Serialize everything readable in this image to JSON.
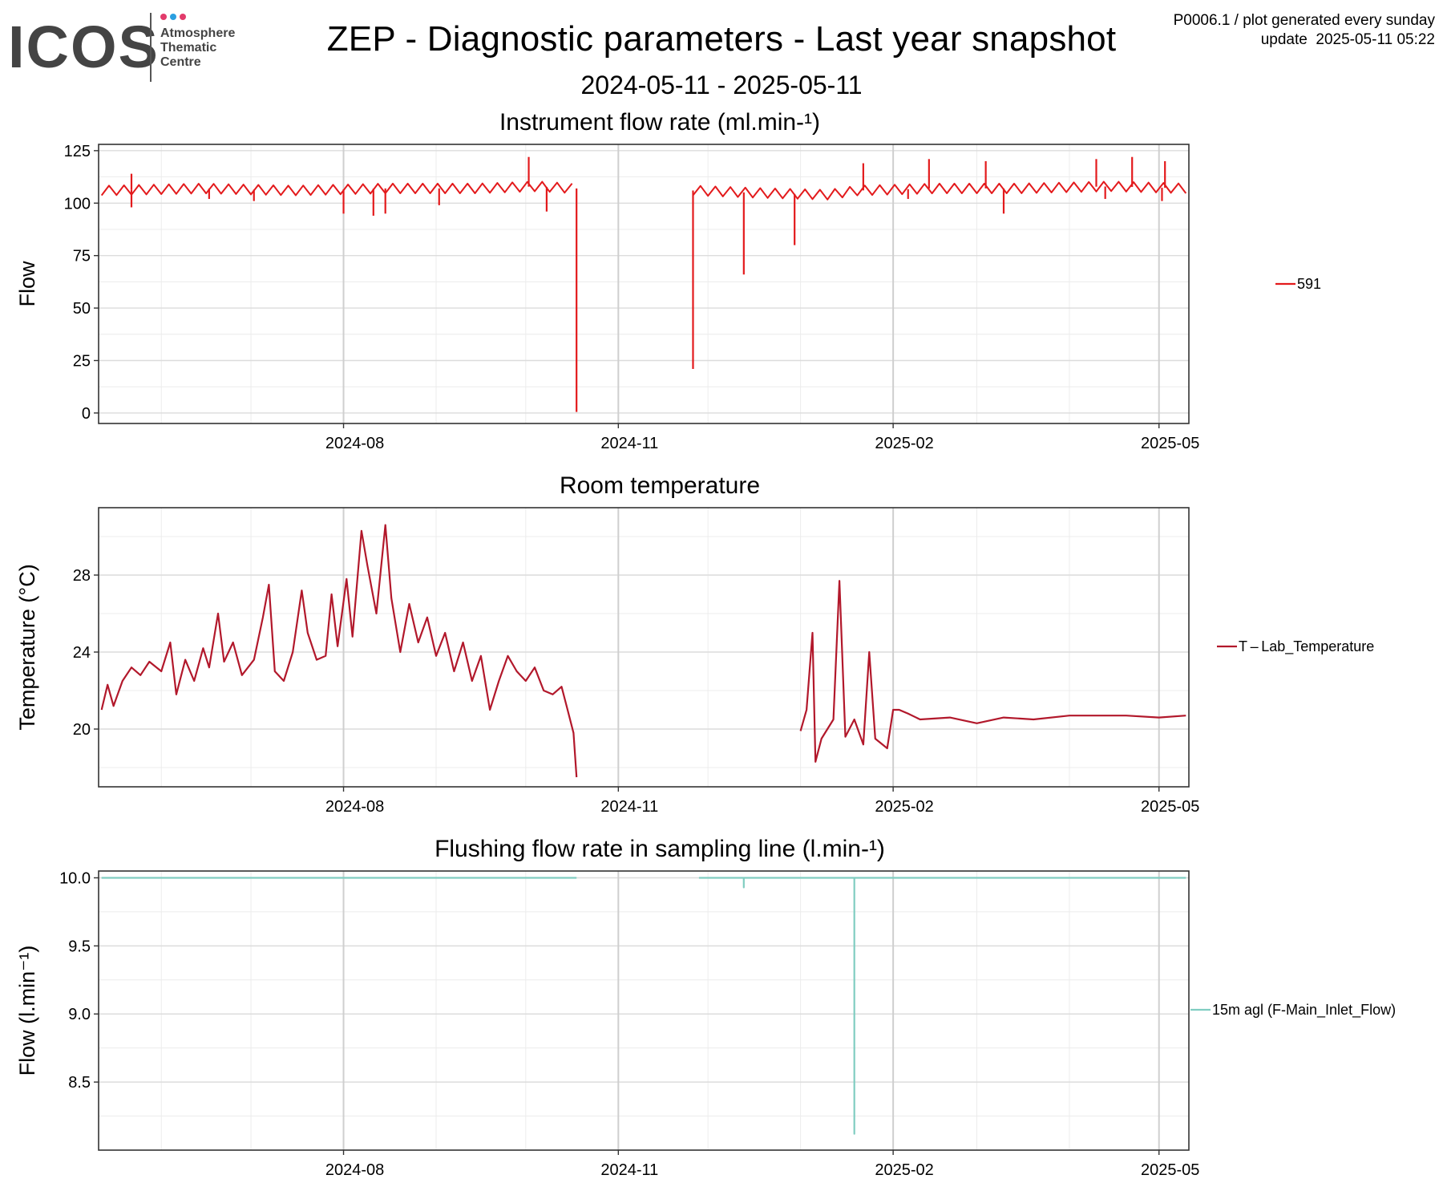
{
  "logo": {
    "wordmark": "ICOS",
    "line1": "Atmosphere",
    "line2": "Thematic",
    "line3": "Centre",
    "dot_colors": [
      "#e23b6b",
      "#2a9fe0",
      "#e23b6b"
    ]
  },
  "header": {
    "title": "ZEP - Diagnostic parameters - Last year snapshot",
    "subtitle": "2024-05-11 - 2025-05-11",
    "meta_line1": "P0006.1 / plot generated every sunday",
    "meta_line2": "update  2025-05-11 05:22"
  },
  "chart_data": [
    {
      "type": "line",
      "title": "Instrument flow rate (ml.min-¹)",
      "ylabel": "Flow",
      "xlabel": "",
      "xlim": [
        "2024-05-11",
        "2025-05-11"
      ],
      "ylim": [
        -5,
        128
      ],
      "yticks": [
        0,
        25,
        50,
        75,
        100,
        125
      ],
      "xticks": [
        "2024-08",
        "2024-11",
        "2025-02",
        "2025-05"
      ],
      "grid": true,
      "legend": "right",
      "color": "#e31a1c",
      "series": [
        {
          "name": "591",
          "baseline_points": [
            [
              "2024-05-12",
              106
            ],
            [
              "2024-06-15",
              107
            ],
            [
              "2024-07-15",
              106
            ],
            [
              "2024-08-15",
              107
            ],
            [
              "2024-09-15",
              107
            ],
            [
              "2024-10-05",
              108
            ],
            [
              "2024-10-17",
              107
            ],
            [
              "2024-11-27",
              106
            ],
            [
              "2024-12-15",
              105
            ],
            [
              "2025-01-10",
              104
            ],
            [
              "2025-01-20",
              106
            ],
            [
              "2025-02-15",
              107
            ],
            [
              "2025-03-15",
              107
            ],
            [
              "2025-04-15",
              108
            ],
            [
              "2025-05-10",
              107
            ]
          ],
          "gap": [
            "2024-10-18",
            "2024-11-26"
          ],
          "spikes": [
            [
              "2024-05-22",
              114
            ],
            [
              "2024-05-22",
              98
            ],
            [
              "2024-06-17",
              102
            ],
            [
              "2024-07-02",
              101
            ],
            [
              "2024-08-01",
              95
            ],
            [
              "2024-08-11",
              94
            ],
            [
              "2024-08-15",
              95
            ],
            [
              "2024-09-02",
              99
            ],
            [
              "2024-10-02",
              122
            ],
            [
              "2024-10-08",
              96
            ],
            [
              "2024-10-18",
              0.5
            ],
            [
              "2024-11-26",
              21
            ],
            [
              "2024-12-13",
              66
            ],
            [
              "2024-12-30",
              80
            ],
            [
              "2025-01-22",
              119
            ],
            [
              "2025-02-06",
              102
            ],
            [
              "2025-02-13",
              121
            ],
            [
              "2025-03-04",
              120
            ],
            [
              "2025-03-10",
              95
            ],
            [
              "2025-04-10",
              121
            ],
            [
              "2025-04-13",
              102
            ],
            [
              "2025-04-22",
              122
            ],
            [
              "2025-05-02",
              101
            ],
            [
              "2025-05-03",
              120
            ]
          ]
        }
      ]
    },
    {
      "type": "line",
      "title": "Room temperature",
      "ylabel": "Temperature (°C)",
      "xlabel": "",
      "xlim": [
        "2024-05-11",
        "2025-05-11"
      ],
      "ylim": [
        17,
        31.5
      ],
      "yticks": [
        20,
        24,
        28
      ],
      "xticks": [
        "2024-08",
        "2024-11",
        "2025-02",
        "2025-05"
      ],
      "grid": true,
      "legend": "right",
      "color": "#b2182b",
      "series": [
        {
          "name": "T – Lab_Temperature",
          "points": [
            [
              "2024-05-12",
              21.0
            ],
            [
              "2024-05-14",
              22.3
            ],
            [
              "2024-05-16",
              21.2
            ],
            [
              "2024-05-19",
              22.5
            ],
            [
              "2024-05-22",
              23.2
            ],
            [
              "2024-05-25",
              22.8
            ],
            [
              "2024-05-28",
              23.5
            ],
            [
              "2024-06-01",
              23.0
            ],
            [
              "2024-06-04",
              24.5
            ],
            [
              "2024-06-06",
              21.8
            ],
            [
              "2024-06-09",
              23.6
            ],
            [
              "2024-06-12",
              22.5
            ],
            [
              "2024-06-15",
              24.2
            ],
            [
              "2024-06-17",
              23.2
            ],
            [
              "2024-06-20",
              26.0
            ],
            [
              "2024-06-22",
              23.5
            ],
            [
              "2024-06-25",
              24.5
            ],
            [
              "2024-06-28",
              22.8
            ],
            [
              "2024-07-02",
              23.6
            ],
            [
              "2024-07-05",
              25.8
            ],
            [
              "2024-07-07",
              27.5
            ],
            [
              "2024-07-09",
              23.0
            ],
            [
              "2024-07-12",
              22.5
            ],
            [
              "2024-07-15",
              24.0
            ],
            [
              "2024-07-18",
              27.2
            ],
            [
              "2024-07-20",
              25.0
            ],
            [
              "2024-07-23",
              23.6
            ],
            [
              "2024-07-26",
              23.8
            ],
            [
              "2024-07-28",
              27.0
            ],
            [
              "2024-07-30",
              24.3
            ],
            [
              "2024-08-02",
              27.8
            ],
            [
              "2024-08-04",
              24.8
            ],
            [
              "2024-08-07",
              30.3
            ],
            [
              "2024-08-09",
              28.5
            ],
            [
              "2024-08-12",
              26.0
            ],
            [
              "2024-08-15",
              30.6
            ],
            [
              "2024-08-17",
              26.8
            ],
            [
              "2024-08-20",
              24.0
            ],
            [
              "2024-08-23",
              26.5
            ],
            [
              "2024-08-26",
              24.5
            ],
            [
              "2024-08-29",
              25.8
            ],
            [
              "2024-09-01",
              23.8
            ],
            [
              "2024-09-04",
              25.0
            ],
            [
              "2024-09-07",
              23.0
            ],
            [
              "2024-09-10",
              24.5
            ],
            [
              "2024-09-13",
              22.5
            ],
            [
              "2024-09-16",
              23.8
            ],
            [
              "2024-09-19",
              21.0
            ],
            [
              "2024-09-22",
              22.5
            ],
            [
              "2024-09-25",
              23.8
            ],
            [
              "2024-09-28",
              23.0
            ],
            [
              "2024-10-01",
              22.5
            ],
            [
              "2024-10-04",
              23.2
            ],
            [
              "2024-10-07",
              22.0
            ],
            [
              "2024-10-10",
              21.8
            ],
            [
              "2024-10-13",
              22.2
            ],
            [
              "2024-10-15",
              21.0
            ],
            [
              "2024-10-17",
              19.8
            ],
            [
              "2024-10-18",
              17.5
            ],
            null,
            [
              "2025-01-01",
              19.9
            ],
            [
              "2025-01-03",
              21.0
            ],
            [
              "2025-01-05",
              25.0
            ],
            [
              "2025-01-06",
              18.3
            ],
            [
              "2025-01-08",
              19.5
            ],
            [
              "2025-01-12",
              20.5
            ],
            [
              "2025-01-14",
              27.7
            ],
            [
              "2025-01-16",
              19.6
            ],
            [
              "2025-01-19",
              20.5
            ],
            [
              "2025-01-22",
              19.2
            ],
            [
              "2025-01-24",
              24.0
            ],
            [
              "2025-01-26",
              19.5
            ],
            [
              "2025-01-30",
              19.0
            ],
            [
              "2025-02-01",
              21.0
            ],
            [
              "2025-02-03",
              21.0
            ],
            [
              "2025-02-06",
              20.8
            ],
            [
              "2025-02-10",
              20.5
            ],
            [
              "2025-02-20",
              20.6
            ],
            [
              "2025-03-01",
              20.3
            ],
            [
              "2025-03-10",
              20.6
            ],
            [
              "2025-03-20",
              20.5
            ],
            [
              "2025-04-01",
              20.7
            ],
            [
              "2025-04-10",
              20.7
            ],
            [
              "2025-04-20",
              20.7
            ],
            [
              "2025-05-01",
              20.6
            ],
            [
              "2025-05-10",
              20.7
            ]
          ]
        }
      ]
    },
    {
      "type": "line",
      "title": "Flushing flow rate in sampling line (l.min-¹)",
      "ylabel": "Flow (l.min⁻¹)",
      "xlabel": "",
      "xlim": [
        "2024-05-11",
        "2025-05-11"
      ],
      "ylim": [
        8.0,
        10.05
      ],
      "yticks": [
        8.5,
        9.0,
        9.5,
        10.0
      ],
      "xticks": [
        "2024-08",
        "2024-11",
        "2025-02",
        "2025-05"
      ],
      "grid": true,
      "legend": "right",
      "color": "#80cdc1",
      "series": [
        {
          "name": "15m agl (F-Main_Inlet_Flow)",
          "points": [
            [
              "2024-05-12",
              10.0
            ],
            [
              "2024-10-18",
              10.0
            ],
            null,
            [
              "2024-11-26",
              10.0
            ],
            [
              "2024-11-26",
              10.0
            ],
            null,
            [
              "2024-11-28",
              10.0
            ],
            [
              "2024-12-13",
              10.0
            ],
            [
              "2024-12-13",
              9.93
            ],
            [
              "2024-12-13",
              10.0
            ],
            [
              "2025-01-19",
              10.0
            ],
            [
              "2025-01-19",
              8.12
            ],
            [
              "2025-01-19",
              10.0
            ],
            [
              "2025-05-10",
              10.0
            ]
          ]
        }
      ]
    }
  ]
}
